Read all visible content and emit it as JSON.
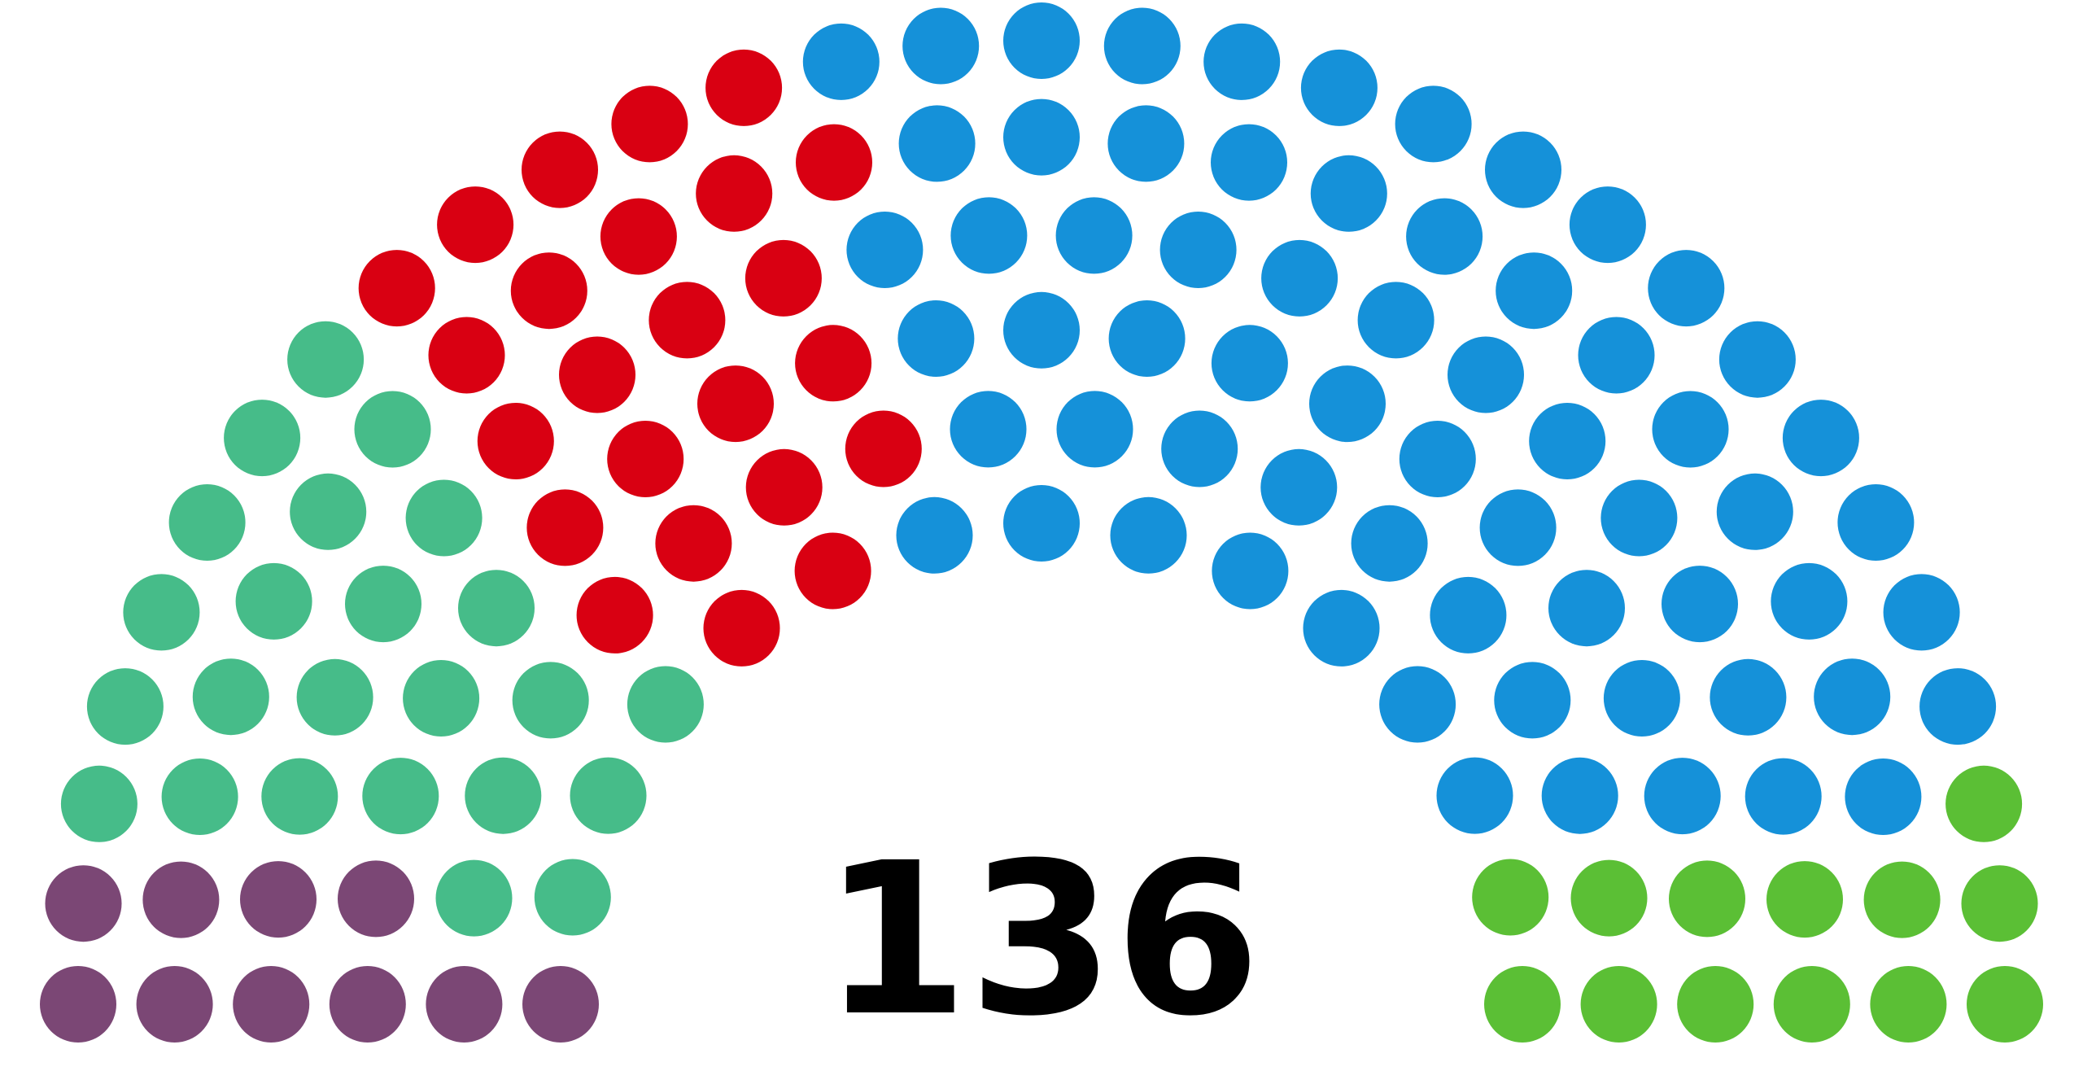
{
  "chart_data": {
    "type": "parliament",
    "total": 136,
    "parties": [
      {
        "color": "#7b4775",
        "seats": 10
      },
      {
        "color": "#46bc89",
        "seats": 24
      },
      {
        "color": "#d90012",
        "seats": 24
      },
      {
        "color": "#1591d9",
        "seats": 65
      },
      {
        "color": "#5bbf35",
        "seats": 13
      }
    ]
  }
}
